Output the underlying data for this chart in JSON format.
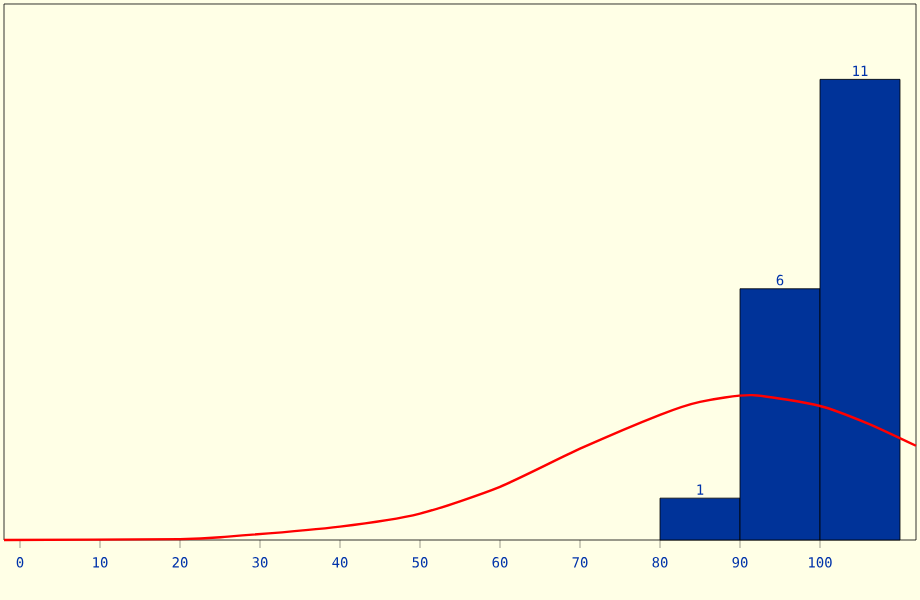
{
  "chart_data": {
    "type": "histogram",
    "bins": [
      80,
      90,
      100,
      110
    ],
    "values": [
      1,
      6,
      11
    ],
    "color": "#003399",
    "value_labels": [
      "1",
      "6",
      "11"
    ],
    "xlim": [
      -2,
      112
    ],
    "ylim": [
      0,
      12.8
    ],
    "xticks": [
      0,
      10,
      20,
      30,
      40,
      50,
      60,
      70,
      80,
      90,
      100
    ],
    "tick_labels": "x",
    "grid": false,
    "series": [
      {
        "type": "line",
        "color": "#ff0000",
        "x": [
          -2,
          20,
          26,
          40,
          50,
          60,
          70,
          80,
          85,
          91.5,
          100,
          106,
          112
        ],
        "values": [
          0,
          0.02,
          0.08,
          0.32,
          0.63,
          1.27,
          2.18,
          2.99,
          3.3,
          3.46,
          3.2,
          2.78,
          2.25
        ]
      }
    ]
  }
}
